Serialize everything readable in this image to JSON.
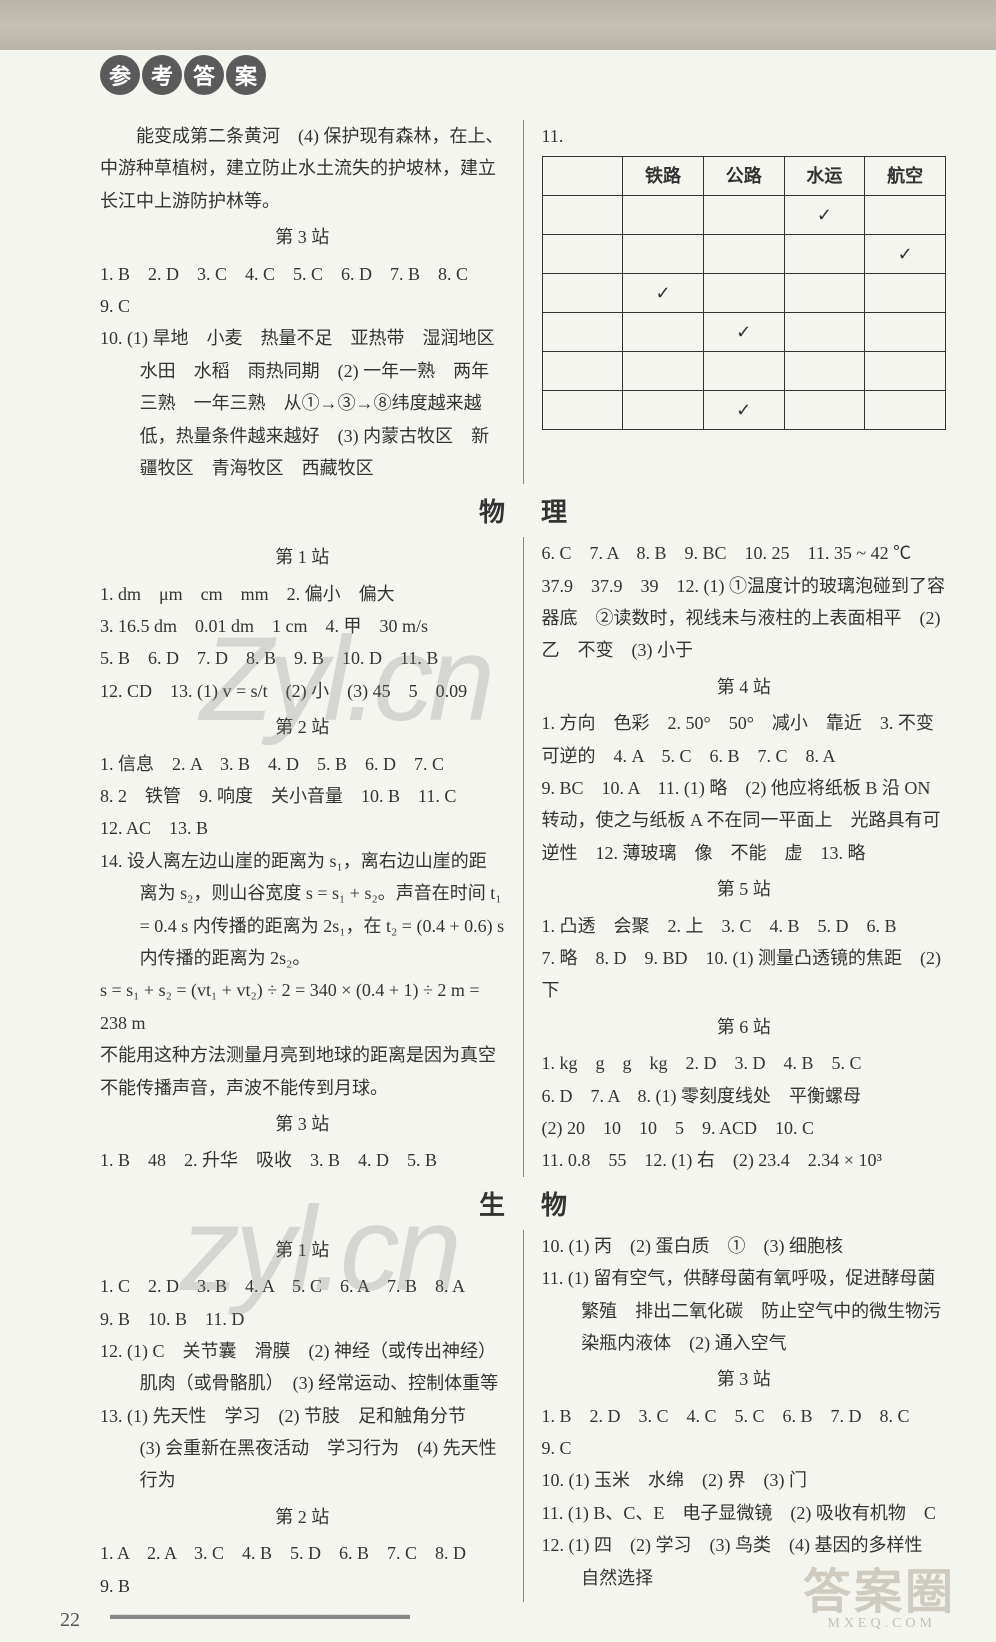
{
  "header": {
    "badge": [
      "参",
      "考",
      "答",
      "案"
    ]
  },
  "leftTop": {
    "p1": "能变成第二条黄河　(4) 保护现有森林，在上、中游种草植树，建立防止水土流失的护坡林，建立长江中上游防护林等。",
    "s3_title": "第 3 站",
    "s3_l1": "1. B　2. D　3. C　4. C　5. C　6. D　7. B　8. C",
    "s3_l2": "9. C",
    "s3_l3": "10. (1) 旱地　小麦　热量不足　亚热带　湿润地区　水田　水稻　雨热同期　(2) 一年一熟　两年三熟　一年三熟　从①→③→⑧纬度越来越低，热量条件越来越好　(3) 内蒙古牧区　新疆牧区　青海牧区　西藏牧区"
  },
  "table": {
    "headers": [
      "",
      "铁路",
      "公路",
      "水运",
      "航空"
    ],
    "rows": [
      [
        "",
        "",
        "",
        "✓",
        ""
      ],
      [
        "",
        "",
        "",
        "",
        "✓"
      ],
      [
        "",
        "✓",
        "",
        "",
        ""
      ],
      [
        "",
        "",
        "✓",
        "",
        ""
      ],
      [
        "",
        "",
        "",
        "",
        ""
      ],
      [
        "",
        "",
        "✓",
        "",
        ""
      ]
    ],
    "label11": "11."
  },
  "subjects": {
    "physics": "物　　理",
    "biology": "生　　物"
  },
  "phyL": {
    "s1_title": "第 1 站",
    "s1_1": "1. dm　μm　cm　mm　2. 偏小　偏大",
    "s1_2": "3. 16.5 dm　0.01 dm　1 cm　4. 甲　30 m/s",
    "s1_3": "5. B　6. D　7. D　8. B　9. B　10. D　11. B",
    "s1_4": "12. CD　13. (1) v = s/t　(2) 小　(3) 45　5　0.09",
    "s2_title": "第 2 站",
    "s2_1": "1. 信息　2. A　3. B　4. D　5. B　6. D　7. C",
    "s2_2": "8. 2　铁管　9. 响度　关小音量　10. B　11. C",
    "s2_3": "12. AC　13. B",
    "s2_4": "14. 设人离左边山崖的距离为 s₁，离右边山崖的距离为 s₂，则山谷宽度 s = s₁ + s₂。声音在时间 t₁ = 0.4 s 内传播的距离为 2s₁，在 t₂ = (0.4 + 0.6) s 内传播的距离为 2s₂。",
    "s2_5": "s = s₁ + s₂ = (vt₁ + vt₂) ÷ 2 = 340 × (0.4 + 1) ÷ 2 m = 238 m",
    "s2_6": "不能用这种方法测量月亮到地球的距离是因为真空不能传播声音，声波不能传到月球。",
    "s3_title": "第 3 站",
    "s3_1": "1. B　48　2. 升华　吸收　3. B　4. D　5. B"
  },
  "phyR": {
    "r1": "6. C　7. A　8. B　9. BC　10. 25　11. 35 ~ 42 ℃　37.9　37.9　39　12. (1) ①温度计的玻璃泡碰到了容器底　②读数时，视线未与液柱的上表面相平　(2) 乙　不变　(3) 小于",
    "s4_title": "第 4 站",
    "s4_1": "1. 方向　色彩　2. 50°　50°　减小　靠近　3. 不变　可逆的　4. A　5. C　6. B　7. C　8. A",
    "s4_2": "9. BC　10. A　11. (1) 略　(2) 他应将纸板 B 沿 ON 转动，使之与纸板 A 不在同一平面上　光路具有可逆性　12. 薄玻璃　像　不能　虚　13. 略",
    "s5_title": "第 5 站",
    "s5_1": "1. 凸透　会聚　2. 上　3. C　4. B　5. D　6. B",
    "s5_2": "7. 略　8. D　9. BD　10. (1) 测量凸透镜的焦距　(2) 下",
    "s6_title": "第 6 站",
    "s6_1": "1. kg　g　g　kg　2. D　3. D　4. B　5. C",
    "s6_2": "6. D　7. A　8. (1) 零刻度线处　平衡螺母",
    "s6_3": "(2) 20　10　10　5　9. ACD　10. C",
    "s6_4": "11. 0.8　55　12. (1) 右　(2) 23.4　2.34 × 10³"
  },
  "bioL": {
    "s1_title": "第 1 站",
    "s1_1": "1. C　2. D　3. B　4. A　5. C　6. A　7. B　8. A",
    "s1_2": "9. B　10. B　11. D",
    "s1_3": "12. (1) C　关节囊　滑膜　(2) 神经（或传出神经）　肌肉（或骨骼肌）　(3) 经常运动、控制体重等",
    "s1_4": "13. (1) 先天性　学习　(2) 节肢　足和触角分节　(3) 会重新在黑夜活动　学习行为　(4) 先天性行为",
    "s2_title": "第 2 站",
    "s2_1": "1. A　2. A　3. C　4. B　5. D　6. B　7. C　8. D",
    "s2_2": "9. B"
  },
  "bioR": {
    "r1": "10. (1) 丙　(2) 蛋白质　①　(3) 细胞核",
    "r2": "11. (1) 留有空气，供酵母菌有氧呼吸，促进酵母菌繁殖　排出二氧化碳　防止空气中的微生物污染瓶内液体　(2) 通入空气",
    "s3_title": "第 3 站",
    "s3_1": "1. B　2. D　3. C　4. C　5. C　6. B　7. D　8. C",
    "s3_2": "9. C",
    "s3_3": "10. (1) 玉米　水绵　(2) 界　(3) 门",
    "s3_4": "11. (1) B、C、E　电子显微镜　(2) 吸收有机物　C",
    "s3_5": "12. (1) 四　(2) 学习　(3) 鸟类　(4) 基因的多样性　自然选择"
  },
  "footer": {
    "page": "22",
    "wm": "答案圈",
    "sub": "MXEQ.COM"
  }
}
